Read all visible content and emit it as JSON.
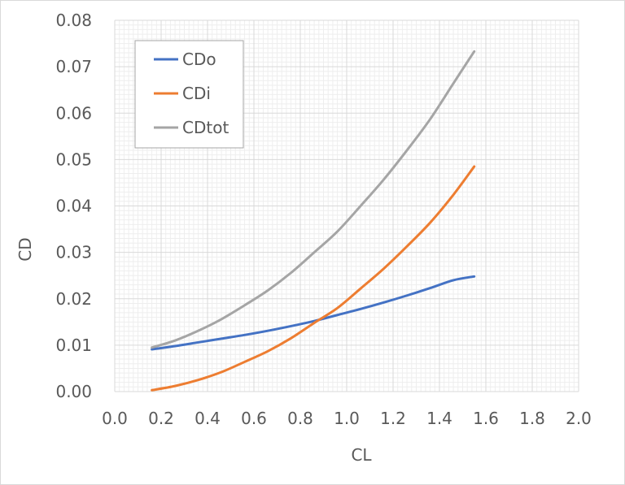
{
  "chart_data": {
    "type": "line",
    "xlabel": "CL",
    "ylabel": "CD",
    "xlim": [
      0.0,
      2.0
    ],
    "ylim": [
      0.0,
      0.08
    ],
    "x_ticks": [
      "0.0",
      "0.2",
      "0.4",
      "0.6",
      "0.8",
      "1.0",
      "1.2",
      "1.4",
      "1.6",
      "1.8",
      "2.0"
    ],
    "y_ticks": [
      "0.00",
      "0.01",
      "0.02",
      "0.03",
      "0.04",
      "0.05",
      "0.06",
      "0.07",
      "0.08"
    ],
    "grid": true,
    "legend_position": "top-left",
    "series": [
      {
        "name": "CDo",
        "color": "#4472c4",
        "x": [
          0.16,
          0.26,
          0.36,
          0.46,
          0.56,
          0.66,
          0.76,
          0.86,
          0.96,
          1.06,
          1.16,
          1.26,
          1.36,
          1.46,
          1.55
        ],
        "y": [
          0.0091,
          0.0098,
          0.0106,
          0.0114,
          0.0122,
          0.0131,
          0.0141,
          0.0152,
          0.0165,
          0.0178,
          0.0192,
          0.0207,
          0.0223,
          0.024,
          0.0248
        ]
      },
      {
        "name": "CDi",
        "color": "#ed7d31",
        "x": [
          0.16,
          0.26,
          0.36,
          0.46,
          0.56,
          0.66,
          0.76,
          0.86,
          0.96,
          1.06,
          1.16,
          1.26,
          1.36,
          1.46,
          1.55
        ],
        "y": [
          0.0003,
          0.0012,
          0.0025,
          0.0042,
          0.0064,
          0.0087,
          0.0115,
          0.0148,
          0.018,
          0.0222,
          0.0265,
          0.0313,
          0.0364,
          0.0424,
          0.0485
        ]
      },
      {
        "name": "CDtot",
        "color": "#a5a5a5",
        "x": [
          0.16,
          0.26,
          0.36,
          0.46,
          0.56,
          0.66,
          0.76,
          0.86,
          0.96,
          1.06,
          1.16,
          1.26,
          1.36,
          1.46,
          1.55
        ],
        "y": [
          0.0095,
          0.011,
          0.0131,
          0.0156,
          0.0186,
          0.0218,
          0.0256,
          0.03,
          0.0345,
          0.04,
          0.0457,
          0.052,
          0.0587,
          0.0664,
          0.0733
        ]
      }
    ]
  }
}
